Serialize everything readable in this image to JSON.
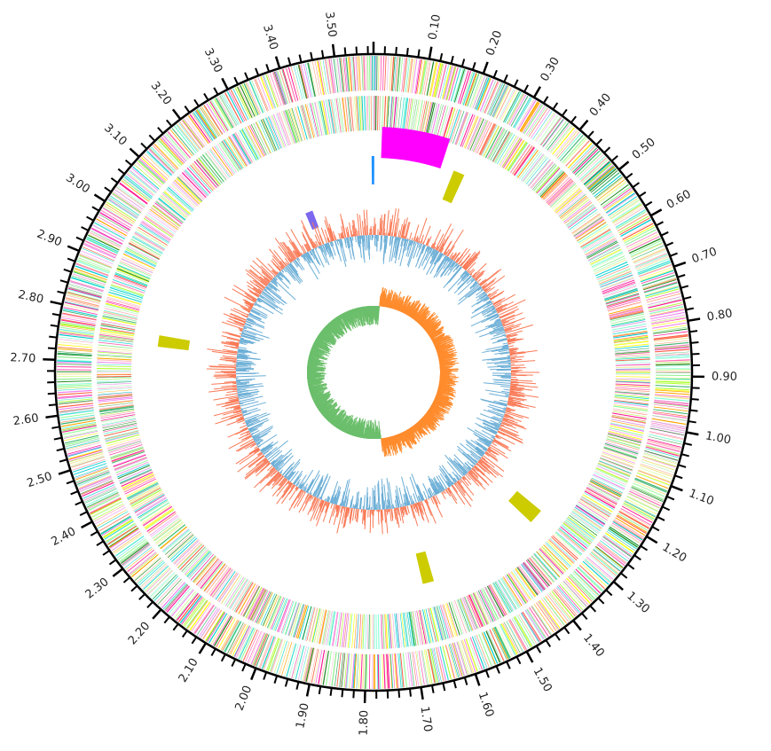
{
  "map": {
    "genome_size_mb": 3.57,
    "unit": "Mb",
    "major_tick_interval": 0.1,
    "minor_tick_interval": 0.02,
    "tick_labels": [
      "0.10",
      "0.20",
      "0.30",
      "0.40",
      "0.50",
      "0.60",
      "0.70",
      "0.80",
      "0.90",
      "1.00",
      "1.10",
      "1.20",
      "1.30",
      "1.40",
      "1.50",
      "1.60",
      "1.70",
      "1.80",
      "1.90",
      "2.00",
      "2.10",
      "2.20",
      "2.30",
      "2.40",
      "2.50",
      "2.60",
      "2.70",
      "2.80",
      "2.90",
      "3.00",
      "3.10",
      "3.20",
      "3.30",
      "3.40",
      "3.50"
    ]
  },
  "tracks": [
    {
      "name": "cds-forward",
      "kind": "feature-stripes",
      "palette": [
        "#ff69b4",
        "#ffb6c1",
        "#adff2f",
        "#98fb98",
        "#ffff00",
        "#00ced1",
        "#ff1493",
        "#7fffd4",
        "#ffa07a",
        "#dda0dd",
        "#90ee90",
        "#f0e68c",
        "#ee82ee",
        "#3cb371",
        "#ffa500",
        "#228b22",
        "#ff6347",
        "#40e0d0"
      ]
    },
    {
      "name": "cds-reverse",
      "kind": "feature-stripes",
      "palette": [
        "#ff69b4",
        "#ffb6c1",
        "#adff2f",
        "#98fb98",
        "#ffff00",
        "#00ced1",
        "#ff1493",
        "#7fffd4",
        "#ffa07a",
        "#dda0dd",
        "#90ee90",
        "#f0e68c",
        "#ee82ee",
        "#3cb371",
        "#ffa500",
        "#228b22",
        "#ff6347",
        "#40e0d0"
      ]
    },
    {
      "name": "genomic-islands",
      "kind": "blocks",
      "color": "#ff00ff",
      "features": [
        {
          "start_mb": 0.02,
          "end_mb": 0.18
        }
      ]
    },
    {
      "name": "rrna",
      "kind": "blocks",
      "color": "#1e90ff",
      "features": [
        {
          "start_mb": 3.565,
          "end_mb": 3.572
        }
      ]
    },
    {
      "name": "prophages",
      "kind": "blocks",
      "color": "#cccc00",
      "features": [
        {
          "start_mb": 0.215,
          "end_mb": 0.245
        },
        {
          "start_mb": 1.285,
          "end_mb": 1.325
        },
        {
          "start_mb": 1.625,
          "end_mb": 1.655
        },
        {
          "start_mb": 2.745,
          "end_mb": 2.775
        }
      ]
    },
    {
      "name": "crispr",
      "kind": "blocks",
      "color": "#7b68ee",
      "features": [
        {
          "start_mb": 3.34,
          "end_mb": 3.365
        }
      ]
    },
    {
      "name": "gc-content",
      "kind": "histogram",
      "positive_color": "#f97a57",
      "negative_color": "#6baed6"
    },
    {
      "name": "gc-skew",
      "kind": "histogram",
      "positive_color": "#ff8c2e",
      "negative_color": "#6cbf6c"
    }
  ],
  "colors": {
    "axis": "#000000",
    "background": "#ffffff"
  }
}
